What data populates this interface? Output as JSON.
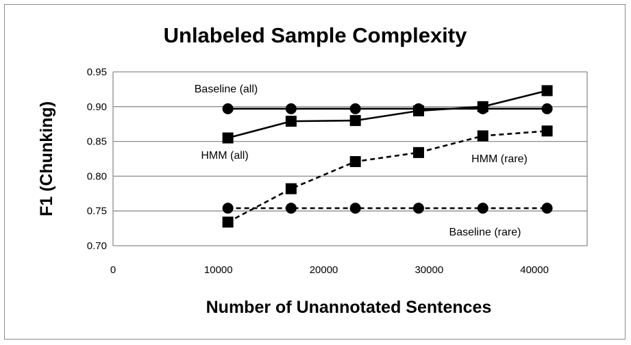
{
  "chart_data": {
    "type": "line",
    "title": "Unlabeled Sample Complexity",
    "xlabel": "Number of Unannotated Sentences",
    "ylabel": "F1 (Chunking)",
    "xlim": [
      0,
      45000
    ],
    "ylim": [
      0.7,
      0.95
    ],
    "x_ticks": [
      "0",
      "10000",
      "20000",
      "30000",
      "40000"
    ],
    "y_ticks": [
      "0.70",
      "0.75",
      "0.80",
      "0.85",
      "0.90",
      "0.95"
    ],
    "grid": "horizontal",
    "legend": "none",
    "series": [
      {
        "name": "Baseline (all)",
        "marker": "circle",
        "line": "solid",
        "x": [
          10900,
          16900,
          23000,
          29000,
          35100,
          41200
        ],
        "y": [
          0.897,
          0.897,
          0.897,
          0.897,
          0.897,
          0.897
        ]
      },
      {
        "name": "HMM (all)",
        "marker": "square",
        "line": "solid",
        "x": [
          10900,
          16900,
          23000,
          29000,
          35100,
          41200
        ],
        "y": [
          0.855,
          0.879,
          0.88,
          0.894,
          0.9,
          0.923
        ]
      },
      {
        "name": "HMM (rare)",
        "marker": "square",
        "line": "dashed",
        "x": [
          10900,
          16900,
          23000,
          29000,
          35100,
          41200
        ],
        "y": [
          0.734,
          0.782,
          0.821,
          0.834,
          0.858,
          0.865
        ]
      },
      {
        "name": "Baseline (rare)",
        "marker": "circle",
        "line": "dashed",
        "x": [
          10900,
          16900,
          23000,
          29000,
          35100,
          41200
        ],
        "y": [
          0.754,
          0.754,
          0.754,
          0.754,
          0.754,
          0.754
        ]
      }
    ]
  }
}
